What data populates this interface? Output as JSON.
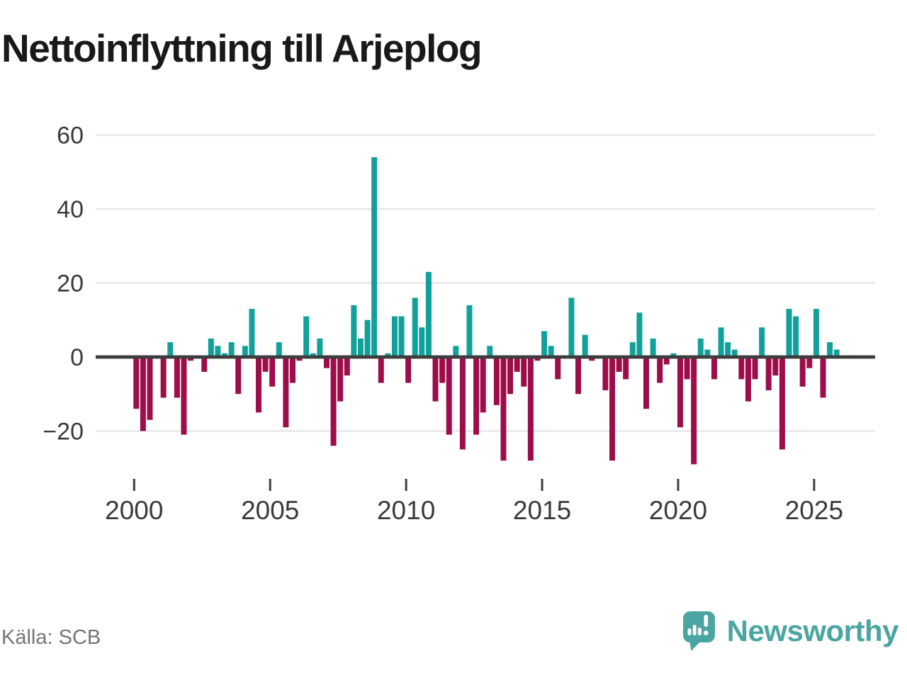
{
  "title": "Nettoinflyttning till Arjeplog",
  "source": "Källa: SCB",
  "brand": {
    "name": "Newsworthy"
  },
  "colors": {
    "positive": "#11a19a",
    "negative": "#9d0d4a",
    "grid": "#e2e2e2",
    "axis": "#3d3d3d",
    "tick_label": "#3a3a3a",
    "title": "#191919",
    "source_text": "#757575",
    "brand_teal": "#4ba5a1"
  },
  "chart_data": {
    "type": "bar",
    "title": "Nettoinflyttning till Arjeplog",
    "xlabel": "",
    "ylabel": "",
    "frequency": "quarterly",
    "grid": true,
    "legend": "none",
    "ylim": [
      -32,
      62
    ],
    "y_ticks": [
      {
        "value": 60,
        "label": "60"
      },
      {
        "value": 40,
        "label": "40"
      },
      {
        "value": 20,
        "label": "20"
      },
      {
        "value": 0,
        "label": "0"
      },
      {
        "value": -20,
        "label": "−20"
      }
    ],
    "x_ticks": [
      {
        "value": 2000,
        "label": "2000"
      },
      {
        "value": 2005,
        "label": "2005"
      },
      {
        "value": 2010,
        "label": "2010"
      },
      {
        "value": 2015,
        "label": "2015"
      },
      {
        "value": 2020,
        "label": "2020"
      },
      {
        "value": 2025,
        "label": "2025"
      }
    ],
    "series_name": "Nettoinflyttning per kvartal",
    "years": [
      {
        "year": 2000,
        "values": [
          -14,
          -20,
          -17,
          0
        ]
      },
      {
        "year": 2001,
        "values": [
          -11,
          4,
          -11,
          -21
        ]
      },
      {
        "year": 2002,
        "values": [
          -1,
          0,
          -4,
          5
        ]
      },
      {
        "year": 2003,
        "values": [
          3,
          1,
          4,
          -10
        ]
      },
      {
        "year": 2004,
        "values": [
          3,
          13,
          -15,
          -4
        ]
      },
      {
        "year": 2005,
        "values": [
          -8,
          4,
          -19,
          -7
        ]
      },
      {
        "year": 2006,
        "values": [
          -1,
          11,
          1,
          5
        ]
      },
      {
        "year": 2007,
        "values": [
          -3,
          -24,
          -12,
          -5
        ]
      },
      {
        "year": 2008,
        "values": [
          14,
          5,
          10,
          54
        ]
      },
      {
        "year": 2009,
        "values": [
          -7,
          1,
          11,
          11
        ]
      },
      {
        "year": 2010,
        "values": [
          -7,
          16,
          8,
          23
        ]
      },
      {
        "year": 2011,
        "values": [
          -12,
          -7,
          -21,
          3
        ]
      },
      {
        "year": 2012,
        "values": [
          -25,
          14,
          -21,
          -15
        ]
      },
      {
        "year": 2013,
        "values": [
          3,
          -13,
          -28,
          -10
        ]
      },
      {
        "year": 2014,
        "values": [
          -4,
          -8,
          -28,
          -1
        ]
      },
      {
        "year": 2015,
        "values": [
          7,
          3,
          -6,
          0
        ]
      },
      {
        "year": 2016,
        "values": [
          16,
          -10,
          6,
          -1
        ]
      },
      {
        "year": 2017,
        "values": [
          0,
          -9,
          -28,
          -4
        ]
      },
      {
        "year": 2018,
        "values": [
          -6,
          4,
          12,
          -14
        ]
      },
      {
        "year": 2019,
        "values": [
          5,
          -7,
          -2,
          1
        ]
      },
      {
        "year": 2020,
        "values": [
          -19,
          -6,
          -29,
          5
        ]
      },
      {
        "year": 2021,
        "values": [
          2,
          -6,
          8,
          4
        ]
      },
      {
        "year": 2022,
        "values": [
          2,
          -6,
          -12,
          -6
        ]
      },
      {
        "year": 2023,
        "values": [
          8,
          -9,
          -5,
          -25
        ]
      },
      {
        "year": 2024,
        "values": [
          13,
          11,
          -8,
          -3
        ]
      },
      {
        "year": 2025,
        "values": [
          13,
          -11,
          4,
          2
        ]
      }
    ]
  }
}
